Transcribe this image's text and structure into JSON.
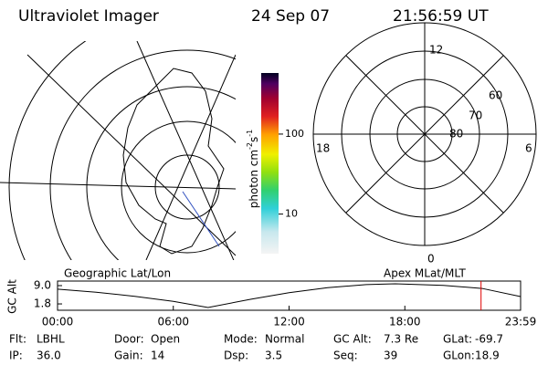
{
  "header": {
    "instrument": "Ultraviolet Imager",
    "date": "24 Sep 07",
    "time": "21:56:59 UT"
  },
  "colorbar": {
    "label": [
      "photon cm",
      "-2",
      "s",
      "-1"
    ],
    "scale": "log",
    "lim": [
      3.2,
      580
    ],
    "ticks": [
      10,
      100
    ]
  },
  "polar": {
    "mlt_labels": [
      "12",
      "6",
      "0",
      "18"
    ],
    "lat_labels": [
      "60",
      "70",
      "80"
    ]
  },
  "altitude": {
    "ylabel": "GC Alt",
    "left_label": "Geographic Lat/Lon",
    "right_label": "Apex MLat/MLT",
    "ylim": [
      -0.7,
      10.8
    ],
    "yticks": [
      {
        "value": 9,
        "label": "9.0"
      },
      1.8
    ],
    "xlim": [
      0,
      24
    ],
    "xticks": [
      {
        "value": 0,
        "label": "00:00"
      },
      {
        "value": 6,
        "label": "06:00"
      },
      {
        "value": 12,
        "label": "12:00"
      },
      {
        "value": 18,
        "label": "18:00"
      },
      {
        "value": 24,
        "label": "23:59"
      }
    ],
    "x": [
      0,
      2,
      4,
      6,
      7.8,
      10,
      12,
      14,
      16,
      17.5,
      20,
      22,
      24
    ],
    "y": [
      7.6,
      6.4,
      4.8,
      2.8,
      0.4,
      3.6,
      6.2,
      8.2,
      9.4,
      9.7,
      9.1,
      7.9,
      4.7
    ],
    "marker_hour": 21.95,
    "marker_color": "#e00000"
  },
  "footer": [
    [
      {
        "label": "Flt:",
        "value": "LBHL"
      },
      {
        "label": "Door:",
        "value": "Open"
      },
      {
        "label": "Mode:",
        "value": "Normal"
      },
      {
        "label": "GC Alt:",
        "value": "7.3 Re"
      },
      {
        "label": "GLat:",
        "value": "-69.7"
      }
    ],
    [
      {
        "label": "IP:",
        "value": "36.0"
      },
      {
        "label": "Gain:",
        "value": "14"
      },
      {
        "label": "Dsp:",
        "value": "3.5"
      },
      {
        "label": "Seq:",
        "value": "39"
      },
      {
        "label": "GLon:",
        "value": "18.9"
      }
    ]
  ]
}
